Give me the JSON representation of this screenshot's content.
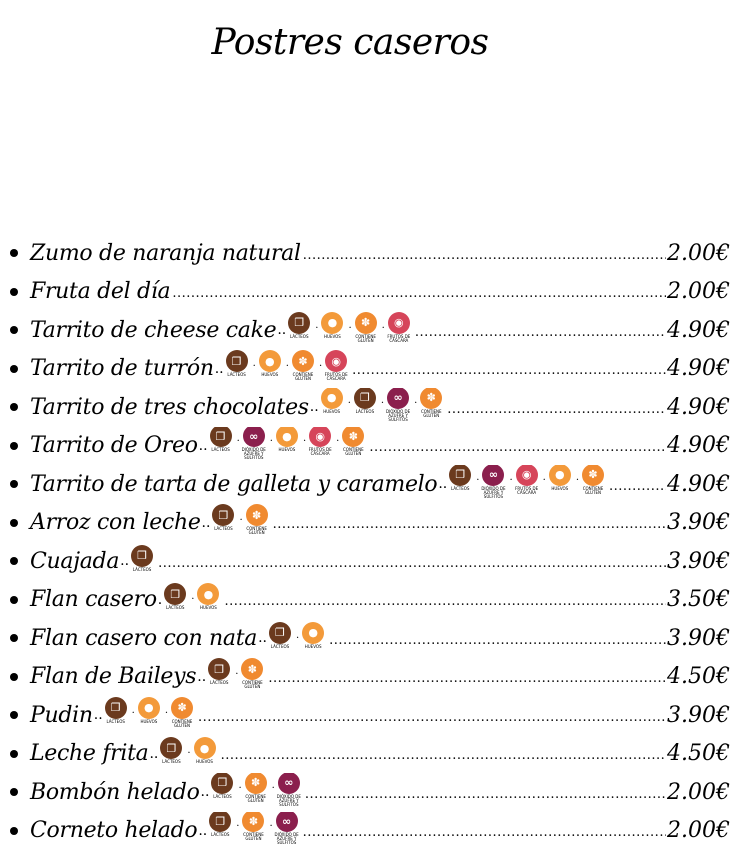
{
  "title": "Postres caseros",
  "allergen_types": {
    "lacteos": {
      "label": "LÁCTEOS",
      "color": "#6b3a1e",
      "glyph": "❐"
    },
    "huevos": {
      "label": "HUEVOS",
      "color": "#f39a3a",
      "glyph": "●"
    },
    "gluten": {
      "label": "CONTIENE GLUTEN",
      "color": "#f08a30",
      "glyph": "✽"
    },
    "frutos": {
      "label": "FRUTOS DE CÁSCARA",
      "color": "#d6455a",
      "glyph": "◉"
    },
    "sulfitos": {
      "label": "DIÓXIDO DE AZUFRE Y SULFITOS",
      "color": "#8b1f4d",
      "glyph": "∞"
    }
  },
  "items": [
    {
      "name": "Zumo de naranja natural",
      "pre": "",
      "allergens": [],
      "price": "2.00€"
    },
    {
      "name": "Fruta del día",
      "pre": "",
      "allergens": [],
      "price": "2.00€"
    },
    {
      "name": "Tarrito de cheese cake",
      "pre": "..",
      "allergens": [
        "lacteos",
        "huevos",
        "gluten",
        "frutos"
      ],
      "price": "4.90€"
    },
    {
      "name": "Tarrito de turrón",
      "pre": "..",
      "allergens": [
        "lacteos",
        "huevos",
        "gluten",
        "frutos"
      ],
      "price": "4.90€"
    },
    {
      "name": "Tarrito de tres chocolates",
      "pre": "..",
      "allergens": [
        "huevos",
        "lacteos",
        "sulfitos",
        "gluten"
      ],
      "price": "4.90€"
    },
    {
      "name": "Tarrito de Oreo",
      "pre": "..",
      "allergens": [
        "lacteos",
        "sulfitos",
        "huevos",
        "frutos",
        "gluten"
      ],
      "price": "4.90€"
    },
    {
      "name": "Tarrito de tarta de galleta y caramelo",
      "pre": "..",
      "allergens": [
        "lacteos",
        "sulfitos",
        "frutos",
        "huevos",
        "gluten"
      ],
      "price": "4.90€"
    },
    {
      "name": "Arroz con leche",
      "pre": "..",
      "allergens": [
        "lacteos",
        "gluten"
      ],
      "price": "3.90€"
    },
    {
      "name": "Cuajada",
      "pre": "..",
      "allergens": [
        "lacteos"
      ],
      "price": "3.90€"
    },
    {
      "name": "Flan casero",
      "pre": ".",
      "allergens": [
        "lacteos",
        "huevos"
      ],
      "price": "3.50€"
    },
    {
      "name": "Flan casero con nata",
      "pre": "..",
      "allergens": [
        "lacteos",
        "huevos"
      ],
      "price": "3.90€"
    },
    {
      "name": "Flan de Baileys",
      "pre": "..",
      "allergens": [
        "lacteos",
        "gluten"
      ],
      "price": "4.50€"
    },
    {
      "name": "Pudin",
      "pre": "..",
      "allergens": [
        "lacteos",
        "huevos",
        "gluten"
      ],
      "price": "3.90€"
    },
    {
      "name": "Leche frita",
      "pre": "..",
      "allergens": [
        "lacteos",
        "huevos"
      ],
      "price": "4.50€"
    },
    {
      "name": "Bombón helado",
      "pre": "..",
      "allergens": [
        "lacteos",
        "gluten",
        "sulfitos"
      ],
      "price": "2.00€"
    },
    {
      "name": "Corneto helado",
      "pre": "..",
      "allergens": [
        "lacteos",
        "gluten",
        "sulfitos"
      ],
      "price": "2.00€"
    }
  ]
}
